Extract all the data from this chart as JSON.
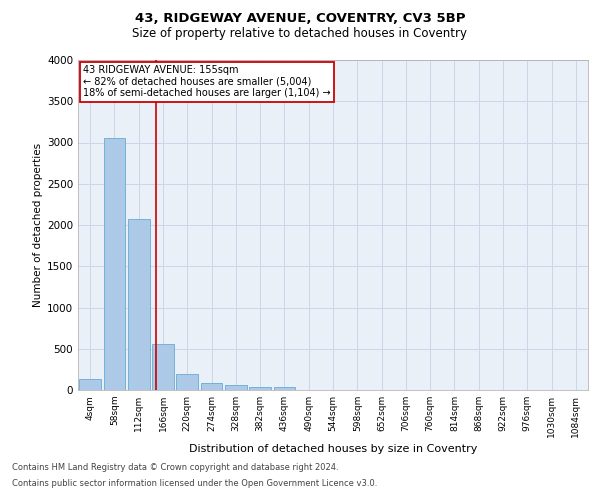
{
  "title1": "43, RIDGEWAY AVENUE, COVENTRY, CV3 5BP",
  "title2": "Size of property relative to detached houses in Coventry",
  "xlabel": "Distribution of detached houses by size in Coventry",
  "ylabel": "Number of detached properties",
  "footer1": "Contains HM Land Registry data © Crown copyright and database right 2024.",
  "footer2": "Contains public sector information licensed under the Open Government Licence v3.0.",
  "bar_labels": [
    "4sqm",
    "58sqm",
    "112sqm",
    "166sqm",
    "220sqm",
    "274sqm",
    "328sqm",
    "382sqm",
    "436sqm",
    "490sqm",
    "544sqm",
    "598sqm",
    "652sqm",
    "706sqm",
    "760sqm",
    "814sqm",
    "868sqm",
    "922sqm",
    "976sqm",
    "1030sqm",
    "1084sqm"
  ],
  "bar_values": [
    130,
    3060,
    2070,
    560,
    195,
    80,
    55,
    40,
    40,
    0,
    0,
    0,
    0,
    0,
    0,
    0,
    0,
    0,
    0,
    0,
    0
  ],
  "bar_color": "#adc9e8",
  "bar_edgecolor": "#6aaad4",
  "grid_color": "#ccd6e8",
  "bg_color": "#eaf0f8",
  "vline_x": 2.73,
  "vline_color": "#cc0000",
  "annotation_text": "43 RIDGEWAY AVENUE: 155sqm\n← 82% of detached houses are smaller (5,004)\n18% of semi-detached houses are larger (1,104) →",
  "annotation_box_color": "#cc0000",
  "ylim": [
    0,
    4000
  ],
  "yticks": [
    0,
    500,
    1000,
    1500,
    2000,
    2500,
    3000,
    3500,
    4000
  ]
}
